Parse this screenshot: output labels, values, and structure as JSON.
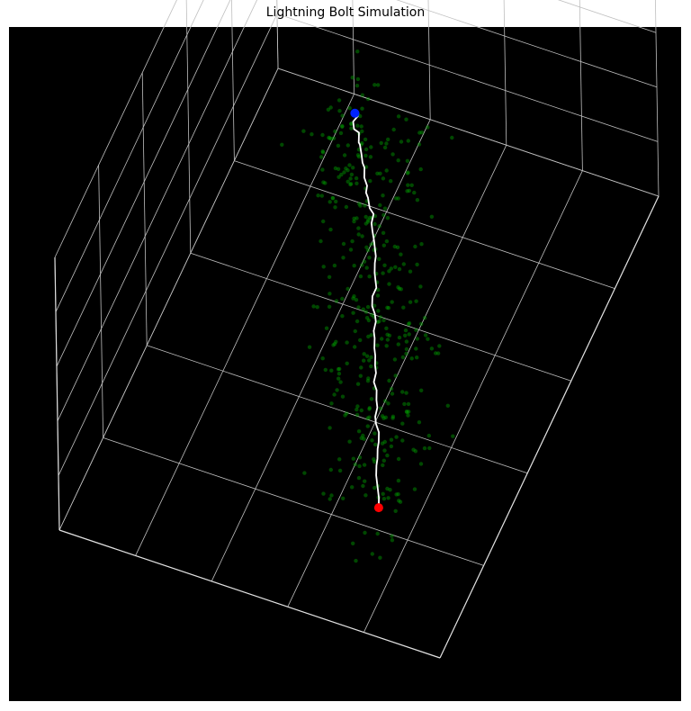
{
  "chart_data": {
    "type": "scatter",
    "projection": "3d",
    "title": "Lightning Bolt Simulation",
    "xlabel": "",
    "ylabel": "",
    "zlabel": "",
    "tick_labels_visible": false,
    "grid": true,
    "background_color": "#000000",
    "colors": {
      "bolt_path": "#ffffff",
      "charge_points": "#00a000",
      "start_point": "#0022ff",
      "end_point": "#ff0000",
      "grid_lines": "#bfbfbf"
    },
    "bolt_path": [
      [
        0.0,
        0.0,
        1.0
      ],
      [
        0.01,
        -0.01,
        0.98
      ],
      [
        -0.01,
        0.0,
        0.96
      ],
      [
        0.0,
        0.01,
        0.94
      ],
      [
        0.02,
        0.0,
        0.92
      ],
      [
        0.03,
        0.02,
        0.9
      ],
      [
        0.03,
        0.01,
        0.88
      ],
      [
        0.05,
        0.03,
        0.86
      ],
      [
        0.06,
        0.04,
        0.84
      ],
      [
        0.07,
        0.04,
        0.82
      ],
      [
        0.08,
        0.06,
        0.8
      ],
      [
        0.1,
        0.07,
        0.78
      ],
      [
        0.1,
        0.08,
        0.76
      ],
      [
        0.11,
        0.08,
        0.74
      ],
      [
        0.13,
        0.1,
        0.72
      ],
      [
        0.15,
        0.1,
        0.7
      ],
      [
        0.15,
        0.12,
        0.68
      ],
      [
        0.16,
        0.13,
        0.66
      ],
      [
        0.18,
        0.15,
        0.64
      ],
      [
        0.19,
        0.16,
        0.62
      ],
      [
        0.2,
        0.17,
        0.6
      ],
      [
        0.2,
        0.18,
        0.58
      ],
      [
        0.21,
        0.2,
        0.56
      ],
      [
        0.22,
        0.21,
        0.54
      ],
      [
        0.23,
        0.22,
        0.52
      ],
      [
        0.22,
        0.24,
        0.5
      ],
      [
        0.23,
        0.26,
        0.48
      ],
      [
        0.25,
        0.27,
        0.46
      ],
      [
        0.26,
        0.28,
        0.44
      ],
      [
        0.26,
        0.3,
        0.42
      ],
      [
        0.27,
        0.31,
        0.4
      ],
      [
        0.28,
        0.33,
        0.38
      ],
      [
        0.29,
        0.34,
        0.36
      ],
      [
        0.3,
        0.36,
        0.34
      ],
      [
        0.31,
        0.37,
        0.32
      ],
      [
        0.31,
        0.39,
        0.3
      ],
      [
        0.33,
        0.4,
        0.28
      ],
      [
        0.34,
        0.42,
        0.26
      ],
      [
        0.35,
        0.43,
        0.24
      ],
      [
        0.35,
        0.45,
        0.22
      ],
      [
        0.36,
        0.46,
        0.2
      ],
      [
        0.38,
        0.47,
        0.18
      ],
      [
        0.39,
        0.49,
        0.16
      ],
      [
        0.39,
        0.5,
        0.14
      ],
      [
        0.4,
        0.52,
        0.12
      ],
      [
        0.4,
        0.53,
        0.1
      ],
      [
        0.41,
        0.55,
        0.08
      ],
      [
        0.42,
        0.56,
        0.06
      ],
      [
        0.43,
        0.57,
        0.04
      ],
      [
        0.44,
        0.58,
        0.02
      ],
      [
        0.45,
        0.6,
        0.0
      ]
    ],
    "start_point": [
      0.0,
      0.0,
      1.0
    ],
    "end_point": [
      0.45,
      0.6,
      0.0
    ],
    "xlim": [
      -1.0,
      1.0
    ],
    "ylim": [
      -1.0,
      1.0
    ],
    "zlim": [
      -0.1,
      1.1
    ],
    "charge_point_count": 400
  }
}
